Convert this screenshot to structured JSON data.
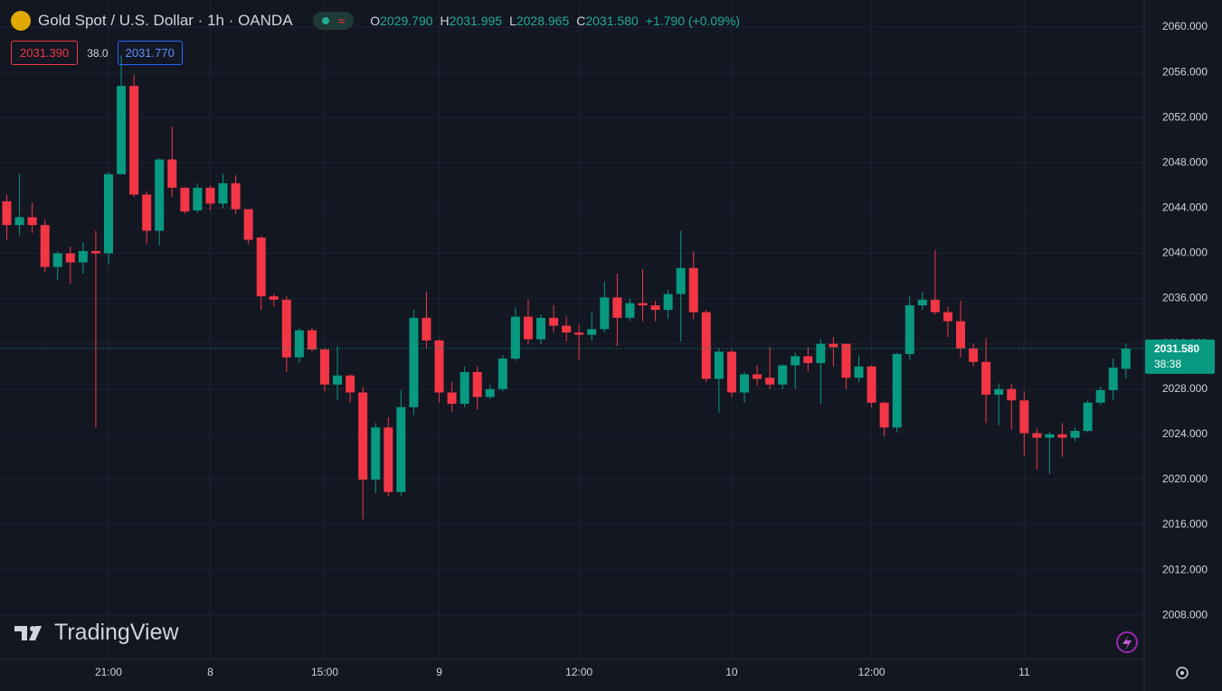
{
  "header": {
    "symbol": "Gold Spot / U.S. Dollar · 1h · OANDA",
    "ohlc": [
      {
        "key": "O",
        "value": "2029.790"
      },
      {
        "key": "H",
        "value": "2031.995"
      },
      {
        "key": "L",
        "value": "2028.965"
      },
      {
        "key": "C",
        "value": "2031.580"
      }
    ],
    "change": "+1.790 (+0.09%)"
  },
  "quote": {
    "bid": "2031.390",
    "spread": "38.0",
    "ask": "2031.770"
  },
  "last_price": {
    "label": "2031.580",
    "countdown": "38:38"
  },
  "brand": "TradingView",
  "chart_data": {
    "type": "candlestick",
    "up_color": "#089981",
    "down_color": "#f23645",
    "grid": true,
    "categories": [
      null,
      null,
      null,
      null,
      null,
      null,
      null,
      null,
      "21:00",
      null,
      null,
      null,
      null,
      null,
      null,
      null,
      "8",
      null,
      null,
      null,
      null,
      null,
      null,
      null,
      null,
      "15:00",
      null,
      null,
      null,
      null,
      null,
      null,
      null,
      null,
      "9",
      null,
      null,
      null,
      null,
      null,
      null,
      null,
      null,
      null,
      null,
      "12:00",
      null,
      null,
      null,
      null,
      null,
      null,
      null,
      null,
      null,
      null,
      null,
      "10",
      null,
      null,
      null,
      null,
      null,
      null,
      null,
      null,
      null,
      null,
      "12:00",
      null,
      null,
      null,
      null,
      null,
      null,
      null,
      null,
      null,
      null,
      null,
      "11",
      null,
      null,
      null,
      null,
      null,
      null,
      null,
      null
    ],
    "open": [
      2044.6,
      2042.5,
      2043.2,
      2042.5,
      2038.8,
      2040,
      2039.2,
      2040.2,
      2040,
      2047,
      2054.8,
      2045.2,
      2042,
      2048.3,
      2045.8,
      2043.8,
      2045.8,
      2044.4,
      2046.2,
      2043.9,
      2041.4,
      2036.2,
      2035.9,
      2030.8,
      2033.2,
      2031.5,
      2028.4,
      2029.2,
      2027.7,
      2020,
      2024.6,
      2018.9,
      2026.4,
      2034.3,
      2032.3,
      2027.7,
      2026.7,
      2029.5,
      2027.3,
      2028,
      2030.7,
      2034.4,
      2032.4,
      2034.3,
      2033.6,
      2033,
      2032.8,
      2033.3,
      2036.1,
      2034.3,
      2035.6,
      2035.4,
      2035,
      2036.4,
      2038.7,
      2034.8,
      2028.9,
      2031.3,
      2027.7,
      2029.3,
      2029,
      2028.4,
      2030.1,
      2030.9,
      2030.3,
      2032,
      2032,
      2029,
      2030,
      2026.8,
      2024.6,
      2031.1,
      2035.4,
      2035.9,
      2034.8,
      2034,
      2031.6,
      2030.4,
      2027.5,
      2028,
      2027,
      2024.1,
      2023.7,
      2024,
      2023.7,
      2024.3,
      2026.8,
      2027.9,
      2029.79
    ],
    "high": [
      2045.2,
      2047,
      2044.5,
      2043,
      2040.2,
      2040.6,
      2041,
      2042,
      2047.2,
      2057.5,
      2055.8,
      2045.5,
      2048.4,
      2051.2,
      2045.8,
      2046.2,
      2046,
      2047,
      2046.9,
      2043.9,
      2041.5,
      2036.4,
      2036.2,
      2033.4,
      2033.4,
      2031.6,
      2031.8,
      2029.3,
      2028.2,
      2025,
      2025.5,
      2027.9,
      2035,
      2036.6,
      2032.4,
      2028.6,
      2030,
      2030,
      2028.4,
      2031,
      2035.2,
      2035.9,
      2034.6,
      2035.4,
      2034.4,
      2033.7,
      2034.8,
      2037.5,
      2038.2,
      2036,
      2038.6,
      2035.8,
      2036.8,
      2042,
      2040.2,
      2035,
      2031.6,
      2031.5,
      2029.5,
      2030.1,
      2031.7,
      2030.2,
      2031.2,
      2031.7,
      2032.4,
      2032.6,
      2032,
      2031,
      2030.1,
      2026.9,
      2031.2,
      2036.2,
      2036.6,
      2040.3,
      2035.3,
      2035.8,
      2032,
      2032.5,
      2028.5,
      2028.5,
      2027.8,
      2024.5,
      2024.2,
      2025,
      2024.6,
      2027,
      2028.2,
      2030.7,
      2031.995
    ],
    "low": [
      2041.2,
      2041.6,
      2041.8,
      2038.3,
      2037.6,
      2037.3,
      2038.2,
      2024.6,
      2039,
      2047,
      2045,
      2040.8,
      2040.7,
      2045,
      2043.5,
      2043.6,
      2043.8,
      2044,
      2043.5,
      2040.8,
      2035,
      2035.3,
      2029.5,
      2030.3,
      2031.3,
      2027.8,
      2027,
      2026.8,
      2016.5,
      2018.8,
      2018.5,
      2018.6,
      2025.7,
      2031.6,
      2026.8,
      2026,
      2026.4,
      2026.2,
      2027.1,
      2027.8,
      2030.5,
      2032,
      2032,
      2033,
      2032.2,
      2030.6,
      2032.3,
      2033,
      2031.8,
      2034,
      2034,
      2034,
      2034.2,
      2032.2,
      2034.2,
      2028.6,
      2025.9,
      2027.3,
      2026.8,
      2028.3,
      2028,
      2028,
      2028,
      2029.6,
      2026.7,
      2030,
      2028,
      2028.6,
      2026.4,
      2023.8,
      2024.2,
      2030.6,
      2035,
      2034.6,
      2032.6,
      2030.8,
      2030,
      2025,
      2024.8,
      2024.4,
      2022.1,
      2020.9,
      2020.5,
      2022,
      2023.4,
      2024.2,
      2026.6,
      2027,
      2028.965
    ],
    "close": [
      2042.5,
      2043.2,
      2042.5,
      2038.8,
      2040,
      2039.2,
      2040.2,
      2040,
      2047,
      2054.8,
      2045.2,
      2042,
      2048.3,
      2045.8,
      2043.7,
      2045.8,
      2044.4,
      2046.2,
      2043.9,
      2041.2,
      2036.2,
      2035.9,
      2030.8,
      2033.2,
      2031.5,
      2028.4,
      2029.2,
      2027.7,
      2020,
      2024.6,
      2018.9,
      2026.4,
      2034.3,
      2032.3,
      2027.7,
      2026.7,
      2029.5,
      2027.3,
      2028,
      2030.7,
      2034.4,
      2032.4,
      2034.3,
      2033.6,
      2033,
      2032.8,
      2033.3,
      2036.1,
      2034.3,
      2035.6,
      2035.4,
      2035,
      2036.4,
      2038.7,
      2034.8,
      2028.9,
      2031.3,
      2027.7,
      2029.3,
      2028.9,
      2028.4,
      2030.1,
      2030.9,
      2030.3,
      2032,
      2031.7,
      2029,
      2030,
      2026.8,
      2024.6,
      2031.1,
      2035.4,
      2035.9,
      2034.8,
      2034,
      2031.6,
      2030.4,
      2027.5,
      2028,
      2027,
      2024.1,
      2023.7,
      2024,
      2023.7,
      2024.3,
      2026.8,
      2027.9,
      2029.9,
      2031.58
    ],
    "ylim": [
      2004.1,
      2062.4
    ],
    "yticks": [
      {
        "value": 2008,
        "label": "2008.000"
      },
      {
        "value": 2012,
        "label": "2012.000"
      },
      {
        "value": 2016,
        "label": "2016.000"
      },
      {
        "value": 2020,
        "label": "2020.000"
      },
      {
        "value": 2024,
        "label": "2024.000"
      },
      {
        "value": 2028,
        "label": "2028.000"
      },
      {
        "value": 2032,
        "label": "2032.000"
      },
      {
        "value": 2036,
        "label": "2036.000"
      },
      {
        "value": 2040,
        "label": "2040.000"
      },
      {
        "value": 2044,
        "label": "2044.000"
      },
      {
        "value": 2048,
        "label": "2048.000"
      },
      {
        "value": 2052,
        "label": "2052.000"
      },
      {
        "value": 2056,
        "label": "2056.000"
      },
      {
        "value": 2060,
        "label": "2060.000"
      }
    ]
  }
}
